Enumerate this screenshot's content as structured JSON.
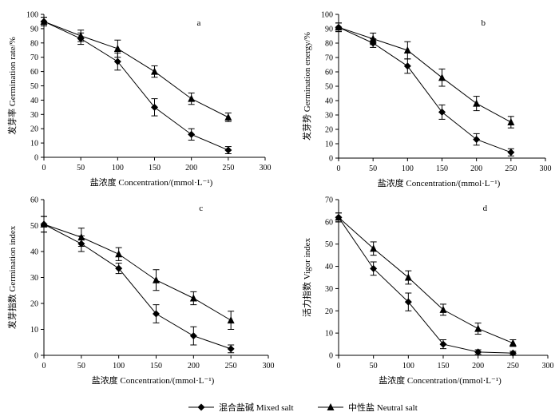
{
  "figure": {
    "legend": {
      "mixed": "混合盐碱  Mixed salt",
      "neutral": "中性盐  Neutral salt"
    }
  },
  "chart_data": [
    {
      "type": "line",
      "panel": "a",
      "xlabel": "盐浓度  Concentration/(mmol·L⁻¹)",
      "ylabel": "发芽率  Germination rate/%",
      "xlim": [
        0,
        300
      ],
      "ylim": [
        0,
        100
      ],
      "xticks": [
        0,
        50,
        100,
        150,
        200,
        250,
        300
      ],
      "yticks": [
        0,
        10,
        20,
        30,
        40,
        50,
        60,
        70,
        80,
        90,
        100
      ],
      "x": [
        0,
        50,
        100,
        150,
        200,
        250
      ],
      "series": [
        {
          "name": "Mixed salt",
          "marker": "diamond",
          "values": [
            95,
            83,
            67,
            35,
            16,
            5
          ],
          "errors": [
            3,
            4,
            6,
            6,
            4,
            2.5
          ]
        },
        {
          "name": "Neutral salt",
          "marker": "triangle",
          "values": [
            95,
            85,
            76,
            60,
            41,
            28
          ],
          "errors": [
            3,
            4,
            6,
            4,
            4,
            3
          ]
        }
      ]
    },
    {
      "type": "line",
      "panel": "b",
      "xlabel": "盐浓度  Concentration/(mmol·L⁻¹)",
      "ylabel": "发芽势  Germination energy/%",
      "xlim": [
        0,
        300
      ],
      "ylim": [
        0,
        100
      ],
      "xticks": [
        0,
        50,
        100,
        150,
        200,
        250,
        300
      ],
      "yticks": [
        0,
        10,
        20,
        30,
        40,
        50,
        60,
        70,
        80,
        90,
        100
      ],
      "x": [
        0,
        50,
        100,
        150,
        200,
        250
      ],
      "series": [
        {
          "name": "Mixed salt",
          "marker": "diamond",
          "values": [
            91,
            80,
            64,
            32,
            13,
            4
          ],
          "errors": [
            3,
            3,
            5,
            5,
            4,
            2.5
          ]
        },
        {
          "name": "Neutral salt",
          "marker": "triangle",
          "values": [
            91,
            83,
            75,
            56,
            38,
            25
          ],
          "errors": [
            3,
            4,
            6,
            6,
            5,
            4
          ]
        }
      ]
    },
    {
      "type": "line",
      "panel": "c",
      "xlabel": "盐浓度  Concentration/(mmol·L⁻¹)",
      "ylabel": "发芽指数  Germination index",
      "xlim": [
        0,
        300
      ],
      "ylim": [
        0,
        60
      ],
      "xticks": [
        0,
        50,
        100,
        150,
        200,
        250,
        300
      ],
      "yticks": [
        0,
        10,
        20,
        30,
        40,
        50,
        60
      ],
      "x": [
        0,
        50,
        100,
        150,
        200,
        250
      ],
      "series": [
        {
          "name": "Mixed salt",
          "marker": "diamond",
          "values": [
            50.5,
            43,
            33.5,
            16,
            7.5,
            2.5
          ],
          "errors": [
            3,
            3,
            2,
            3.5,
            3.5,
            1.5
          ]
        },
        {
          "name": "Neutral salt",
          "marker": "triangle",
          "values": [
            50.5,
            45.5,
            39,
            29,
            22,
            13.5
          ],
          "errors": [
            3,
            3.5,
            2.5,
            4,
            2.5,
            3.5
          ]
        }
      ]
    },
    {
      "type": "line",
      "panel": "d",
      "xlabel": "盐浓度  Concentration/(mmol·L⁻¹)",
      "ylabel": "活力指数  Vigor index",
      "xlim": [
        0,
        300
      ],
      "ylim": [
        0,
        70
      ],
      "xticks": [
        0,
        50,
        100,
        150,
        200,
        250,
        300
      ],
      "yticks": [
        0,
        10,
        20,
        30,
        40,
        50,
        60,
        70
      ],
      "x": [
        0,
        50,
        100,
        150,
        200,
        250
      ],
      "series": [
        {
          "name": "Mixed salt",
          "marker": "diamond",
          "values": [
            62,
            39,
            24,
            5,
            1.5,
            1
          ],
          "errors": [
            2,
            3,
            4,
            2,
            1,
            0.8
          ]
        },
        {
          "name": "Neutral salt",
          "marker": "triangle",
          "values": [
            62,
            48,
            35,
            20.5,
            12,
            5.5
          ],
          "errors": [
            2,
            3,
            3,
            2.5,
            2.5,
            1.5
          ]
        }
      ]
    }
  ]
}
